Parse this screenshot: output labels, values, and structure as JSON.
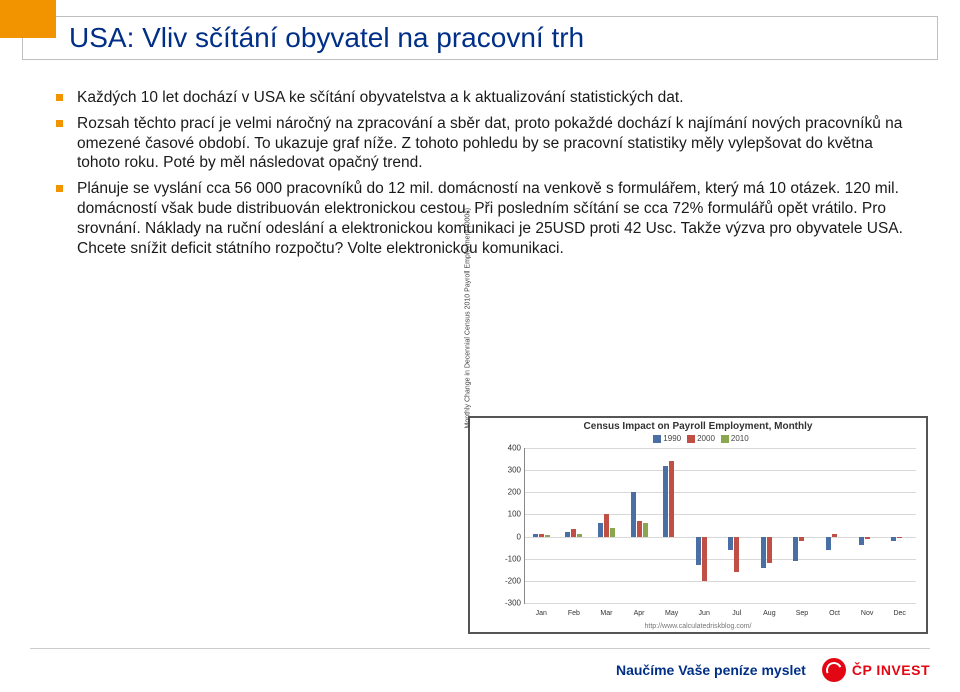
{
  "title": "USA: Vliv sčítání obyvatel na pracovní trh",
  "bullets": [
    "Každých 10 let dochází v USA ke sčítání obyvatelstva a k aktualizování statistických dat.",
    "Rozsah těchto prací je velmi náročný na zpracování a sběr dat, proto pokaždé dochází k najímání nových pracovníků na omezené časové období. To ukazuje  graf níže. Z tohoto pohledu by se pracovní statistiky měly vylepšovat do května tohoto roku. Poté by měl následovat opačný trend.",
    "Plánuje se vyslání cca 56 000 pracovníků do 12 mil. domácností na venkově s formulářem, který má 10 otázek. 120 mil. domácností však bude distribuován elektronickou cestou. Při posledním sčítání se cca 72% formulářů opět vrátilo. Pro srovnání. Náklady na ruční odeslání a elektronickou komunikaci je 25USD proti 42 Usc. Takže výzva pro obyvatele USA. Chcete snížit deficit státního rozpočtu? Volte elektronickou komunikaci."
  ],
  "chart": {
    "title": "Census Impact on Payroll Employment, Monthly",
    "y_axis_label": "Monthly Change in Decennial Census 2010 Payroll Employment (000s)",
    "source": "http://www.calculatedriskblog.com/",
    "series": [
      {
        "name": "1990",
        "color": "#4a6fa5"
      },
      {
        "name": "2000",
        "color": "#c05046"
      },
      {
        "name": "2010",
        "color": "#8aa64f"
      }
    ],
    "y_min": -300,
    "y_max": 400,
    "y_step": 100,
    "months": [
      "Jan",
      "Feb",
      "Mar",
      "Apr",
      "May",
      "Jun",
      "Jul",
      "Aug",
      "Sep",
      "Oct",
      "Nov",
      "Dec"
    ],
    "data": {
      "1990": [
        10,
        20,
        60,
        200,
        320,
        -130,
        -60,
        -140,
        -110,
        -60,
        -40,
        -20
      ],
      "2000": [
        10,
        35,
        100,
        70,
        340,
        -200,
        -160,
        -120,
        -20,
        10,
        -10,
        -5
      ],
      "2010": [
        5,
        10,
        40,
        60,
        0,
        0,
        0,
        0,
        0,
        0,
        0,
        0
      ]
    },
    "grid_color": "#d8d8d8",
    "border_color": "#555555",
    "background": "#ffffff"
  },
  "footer": {
    "slogan": "Naučíme Vaše peníze myslet",
    "logo_text": "ČP INVEST",
    "logo_color": "#e30613"
  },
  "accent_color": "#f29400",
  "title_color": "#002f87"
}
